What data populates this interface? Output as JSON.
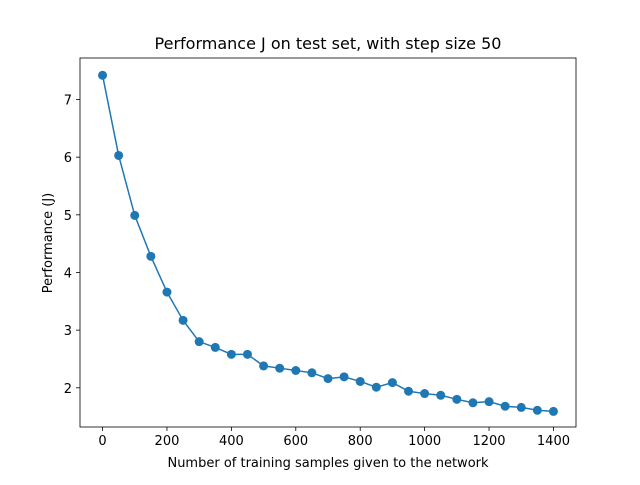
{
  "chart_data": {
    "type": "line",
    "title": "Performance J on test set, with step size 50",
    "xlabel": "Number of training samples given to the network",
    "ylabel": "Performance (J)",
    "xlim": [
      -70,
      1470
    ],
    "ylim": [
      1.32,
      7.72
    ],
    "xticks": [
      0,
      200,
      400,
      600,
      800,
      1000,
      1200,
      1400
    ],
    "yticks": [
      2,
      3,
      4,
      5,
      6,
      7
    ],
    "grid": false,
    "legend": "none",
    "series": [
      {
        "color": "#1f77b4",
        "marker": "circle",
        "x": [
          0,
          50,
          100,
          150,
          200,
          250,
          300,
          350,
          400,
          450,
          500,
          550,
          600,
          650,
          700,
          750,
          800,
          850,
          900,
          950,
          1000,
          1050,
          1100,
          1150,
          1200,
          1250,
          1300,
          1350,
          1400
        ],
        "y": [
          7.42,
          6.03,
          4.99,
          4.28,
          3.66,
          3.17,
          2.8,
          2.7,
          2.58,
          2.58,
          2.38,
          2.34,
          2.3,
          2.26,
          2.16,
          2.19,
          2.11,
          2.01,
          2.09,
          1.94,
          1.9,
          1.87,
          1.8,
          1.74,
          1.76,
          1.68,
          1.66,
          1.61,
          1.59
        ]
      }
    ]
  }
}
